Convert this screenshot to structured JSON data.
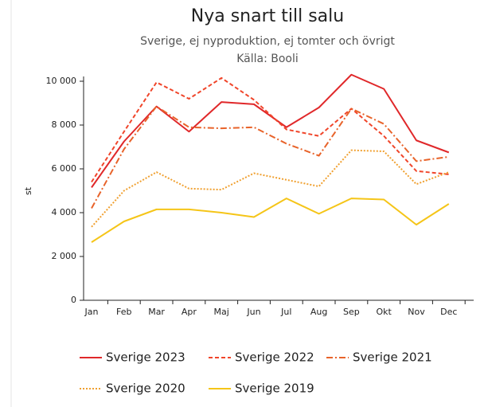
{
  "chart_data": {
    "type": "line",
    "title": "Nya snart till salu",
    "subtitle": "Sverige, ej nyproduktion, ej tomter och övrigt",
    "source": "Källa: Booli",
    "y_label": "st",
    "categories": [
      "Jan",
      "Feb",
      "Mar",
      "Apr",
      "Maj",
      "Jun",
      "Jul",
      "Aug",
      "Sep",
      "Okt",
      "Nov",
      "Dec"
    ],
    "series": [
      {
        "name": "Sverige 2023",
        "color": "#e0282a",
        "dash": "none",
        "values": [
          5150,
          7250,
          8850,
          7700,
          9050,
          8950,
          7900,
          8800,
          10300,
          9650,
          7300,
          6750
        ]
      },
      {
        "name": "Sverige 2022",
        "color": "#f0452a",
        "dash": "5,3",
        "values": [
          5400,
          7700,
          9950,
          9200,
          10150,
          9150,
          7800,
          7500,
          8750,
          7500,
          5900,
          5750
        ]
      },
      {
        "name": "Sverige 2021",
        "color": "#e8632a",
        "dash": "8,3,2,3",
        "values": [
          4200,
          6900,
          8850,
          7900,
          7850,
          7900,
          7150,
          6600,
          8750,
          8050,
          6350,
          6550
        ]
      },
      {
        "name": "Sverige 2020",
        "color": "#f0a030",
        "dash": "2,2",
        "values": [
          3350,
          5000,
          5850,
          5100,
          5050,
          5800,
          5500,
          5200,
          6850,
          6800,
          5300,
          5850
        ]
      },
      {
        "name": "Sverige 2019",
        "color": "#f5c518",
        "dash": "none",
        "values": [
          2650,
          3600,
          4150,
          4150,
          4000,
          3800,
          4650,
          3950,
          4650,
          4600,
          3450,
          4400
        ]
      }
    ],
    "ylim": [
      0,
      10000
    ],
    "yticks": [
      0,
      {
        "value": 2000,
        "label": "2 000"
      },
      {
        "value": 4000,
        "label": "4 000"
      },
      {
        "value": 6000,
        "label": "6 000"
      },
      {
        "value": 8000,
        "label": "8 000"
      },
      {
        "value": 10000,
        "label": "10 000"
      }
    ],
    "grid": false
  }
}
